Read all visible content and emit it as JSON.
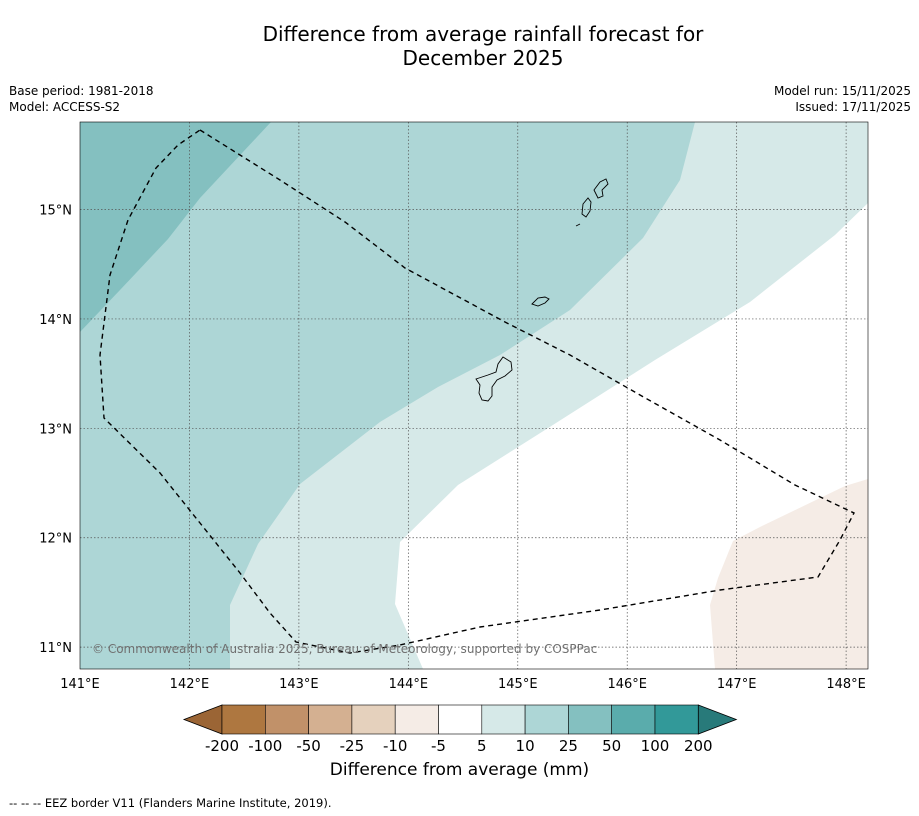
{
  "header": {
    "title_line1": "Difference from average rainfall forecast for",
    "title_line2": "December 2025",
    "base_period": "Base period: 1981-2018",
    "model": "Model: ACCESS-S2",
    "model_run": "Model run: 15/11/2025",
    "issued": "Issued: 17/11/2025"
  },
  "map": {
    "lon_ticks": [
      "141°E",
      "142°E",
      "143°E",
      "144°E",
      "145°E",
      "146°E",
      "147°E",
      "148°E"
    ],
    "lat_ticks": [
      "15°N",
      "14°N",
      "13°N",
      "12°N",
      "11°N"
    ],
    "lon_range": [
      141.0,
      148.2
    ],
    "lat_range": [
      10.8,
      15.8
    ],
    "copyright": "© Commonwealth of Australia 2025, Bureau of Meteorology, supported by COSPPac",
    "regions": [
      {
        "name": "region-25-50mm",
        "category": "25 to 50",
        "color": "#84c0c0"
      },
      {
        "name": "region-10-25mm",
        "category": "10 to 25",
        "color": "#add6d6"
      },
      {
        "name": "region-5-10mm",
        "category": "5 to 10",
        "color": "#d6e9e8"
      },
      {
        "name": "region-minus5-minus10mm",
        "category": "-10 to -5",
        "color": "#f5ece6"
      }
    ]
  },
  "colorbar": {
    "ticks": [
      "-200",
      "-100",
      "-50",
      "-25",
      "-10",
      "-5",
      "5",
      "10",
      "25",
      "50",
      "100",
      "200"
    ],
    "colors": [
      "#9b6535",
      "#ae7740",
      "#c19169",
      "#d4b091",
      "#e5d1bd",
      "#f5ece6",
      "#ffffff",
      "#d6e9e8",
      "#add6d6",
      "#84c0c0",
      "#5aacac",
      "#329999",
      "#287a7a"
    ],
    "label": "Difference from average (mm)"
  },
  "footer": {
    "eez_note": "--  --  -- EEZ border V11 (Flanders Marine Institute, 2019)."
  }
}
